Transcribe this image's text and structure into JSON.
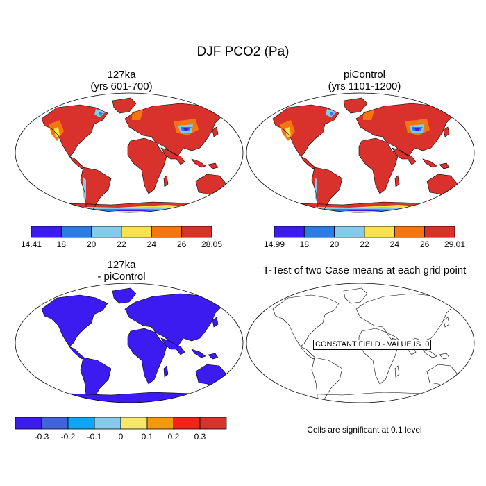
{
  "title": "DJF PCO2 (Pa)",
  "panels": {
    "top_left": {
      "title_line1": "127ka",
      "title_line2": "(yrs 601-700)"
    },
    "top_right": {
      "title_line1": "piControl",
      "title_line2": "(yrs 1101-1200)"
    },
    "bottom_left": {
      "title_line1": "127ka",
      "title_line2": "- piControl"
    },
    "bottom_right": {
      "title": "T-Test of two Case means at each grid point",
      "constant_field_label": "CONSTANT FIELD - VALUE IS .0",
      "note": "Cells are significant at 0.1 level"
    }
  },
  "colorbars": {
    "top_left": {
      "colors": [
        "#3c1bf0",
        "#2d7be3",
        "#86c9ea",
        "#f7e34f",
        "#f5750e",
        "#d9312b"
      ],
      "labels": [
        "14.41",
        "18",
        "20",
        "22",
        "24",
        "26",
        "28.05"
      ]
    },
    "top_right": {
      "colors": [
        "#3c1bf0",
        "#2d7be3",
        "#86c9ea",
        "#f7e34f",
        "#f5750e",
        "#d9312b"
      ],
      "labels": [
        "14.99",
        "18",
        "20",
        "22",
        "24",
        "26",
        "29.01"
      ]
    },
    "bottom_left": {
      "colors": [
        "#3c1bf0",
        "#3f64dd",
        "#0ba7f5",
        "#86c9ea",
        "#f9e868",
        "#f49a0a",
        "#f4231a",
        "#d9312b"
      ],
      "labels": [
        "-0.3",
        "-0.2",
        "-0.1",
        "0",
        "0.1",
        "0.2",
        "0.3"
      ]
    }
  },
  "map_colors": {
    "land_high": "#d9312b",
    "land_mid": "#f5750e",
    "land_low": "#f7e34f",
    "ice_mid": "#86c9ea",
    "ice_low": "#2d7be3",
    "min": "#3c1bf0",
    "diff_fill": "#3c1bf0"
  }
}
